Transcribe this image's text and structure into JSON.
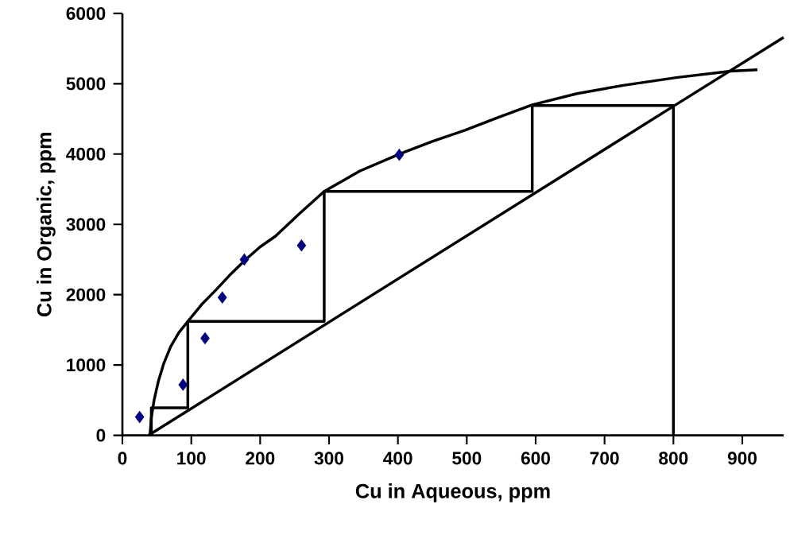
{
  "chart_data": {
    "type": "line",
    "xlabel": "Cu in Aqueous, ppm",
    "ylabel": "Cu in Organic, ppm",
    "xlim": [
      0,
      960
    ],
    "ylim": [
      0,
      6000
    ],
    "xticks": [
      0,
      100,
      200,
      300,
      400,
      500,
      600,
      700,
      800,
      900
    ],
    "yticks": [
      0,
      1000,
      2000,
      3000,
      4000,
      5000,
      6000
    ],
    "grid": false,
    "series": [
      {
        "color": "#000000",
        "x": [
          38,
          800,
          960
        ],
        "values": [
          0,
          4680,
          5660
        ]
      },
      {
        "color": "#000000",
        "x": [
          40,
          42,
          46,
          52,
          60,
          70,
          82,
          95,
          115,
          137,
          158,
          179,
          200,
          222,
          258,
          293,
          345,
          402,
          450,
          498,
          545,
          595,
          660,
          729,
          806,
          883,
          922
        ],
        "values": [
          0,
          250,
          500,
          760,
          1020,
          1260,
          1460,
          1620,
          1860,
          2080,
          2300,
          2500,
          2680,
          2830,
          3160,
          3470,
          3760,
          4000,
          4180,
          4340,
          4520,
          4700,
          4860,
          4980,
          5090,
          5180,
          5200
        ]
      },
      {
        "color": "#000000",
        "x": [
          800,
          800,
          595,
          595,
          293,
          293,
          95,
          95,
          42,
          42
        ],
        "values": [
          0,
          4690,
          4690,
          3470,
          3470,
          1620,
          1620,
          390,
          390,
          0
        ]
      },
      {
        "type": "scatter",
        "color": "#000080",
        "marker": "diamond",
        "x": [
          25,
          88,
          120,
          145,
          177,
          260,
          402
        ],
        "values": [
          260,
          720,
          1380,
          1960,
          2500,
          2700,
          3990
        ]
      }
    ]
  }
}
